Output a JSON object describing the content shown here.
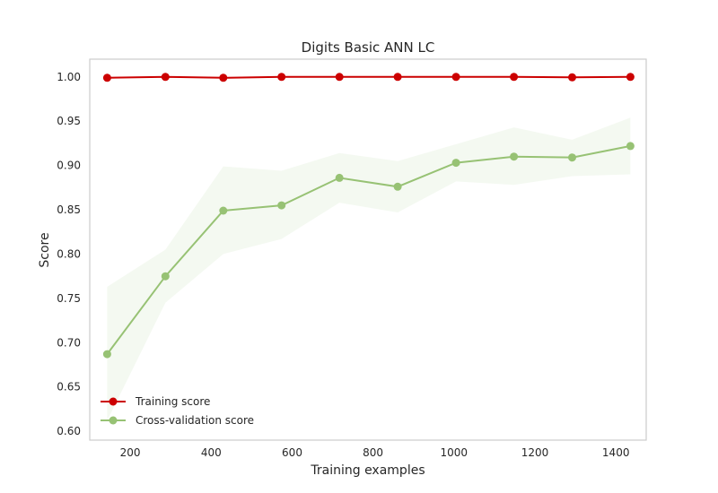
{
  "chart_data": {
    "type": "line",
    "title": "Digits Basic ANN LC",
    "xlabel": "Training examples",
    "ylabel": "Score",
    "xlim": [
      100,
      1475
    ],
    "ylim": [
      0.59,
      1.02
    ],
    "xticks": [
      200,
      400,
      600,
      800,
      1000,
      1200,
      1400
    ],
    "yticks": [
      0.6,
      0.65,
      0.7,
      0.75,
      0.8,
      0.85,
      0.9,
      0.95,
      1.0
    ],
    "grid": false,
    "legend_position": "lower-left",
    "x": [
      143,
      287,
      430,
      574,
      717,
      861,
      1005,
      1148,
      1292,
      1436
    ],
    "series": [
      {
        "name": "Training score",
        "color": "#cc0000",
        "values": [
          0.999,
          1.0,
          0.999,
          1.0,
          1.0,
          1.0,
          1.0,
          1.0,
          0.9995,
          1.0
        ],
        "band_lower": [
          0.998,
          1.0,
          0.998,
          0.999,
          1.0,
          1.0,
          1.0,
          1.0,
          0.999,
          1.0
        ],
        "band_upper": [
          1.0,
          1.0,
          1.0,
          1.0,
          1.0,
          1.0,
          1.0,
          1.0,
          1.0,
          1.0
        ]
      },
      {
        "name": "Cross-validation score",
        "color": "#97c274",
        "values": [
          0.687,
          0.775,
          0.849,
          0.855,
          0.886,
          0.876,
          0.903,
          0.91,
          0.909,
          0.922
        ],
        "band_lower": [
          0.612,
          0.745,
          0.8,
          0.817,
          0.858,
          0.847,
          0.882,
          0.878,
          0.888,
          0.89
        ],
        "band_upper": [
          0.763,
          0.805,
          0.899,
          0.894,
          0.914,
          0.905,
          0.924,
          0.943,
          0.929,
          0.954
        ]
      }
    ]
  }
}
